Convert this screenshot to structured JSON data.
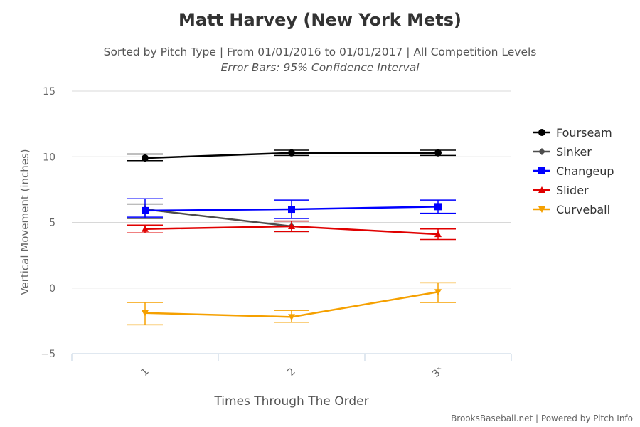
{
  "chart_data": {
    "type": "line",
    "title": "Matt Harvey (New York Mets)",
    "subtitle": "Sorted by Pitch Type | From 01/01/2016 to 01/01/2017 | All Competition Levels",
    "subtitle2": "Error Bars: 95% Confidence Interval",
    "xlabel": "Times Through The Order",
    "ylabel": "Vertical Movement (inches)",
    "categories": [
      "1",
      "2",
      "3ˣ"
    ],
    "ylim": [
      -5,
      15
    ],
    "yticks": [
      "15",
      "10",
      "5",
      "0",
      "−5"
    ],
    "ytick_values": [
      15,
      10,
      5,
      0,
      -5
    ],
    "grid": true,
    "legend_position": "right",
    "series": [
      {
        "name": "Fourseam",
        "color": "#000000",
        "marker": "circle",
        "values": [
          9.9,
          10.3,
          10.3
        ],
        "err_low": [
          9.7,
          10.1,
          10.1
        ],
        "err_high": [
          10.2,
          10.5,
          10.5
        ]
      },
      {
        "name": "Sinker",
        "color": "#4d4d4d",
        "marker": "diamond",
        "values": [
          6.0,
          4.7,
          null
        ],
        "err_low": [
          5.3,
          4.3,
          null
        ],
        "err_high": [
          6.4,
          5.1,
          null
        ]
      },
      {
        "name": "Changeup",
        "color": "#0000ff",
        "marker": "square",
        "values": [
          5.9,
          6.0,
          6.2
        ],
        "err_low": [
          5.4,
          5.3,
          5.7
        ],
        "err_high": [
          6.8,
          6.7,
          6.7
        ]
      },
      {
        "name": "Slider",
        "color": "#e00000",
        "marker": "triangle",
        "values": [
          4.5,
          4.7,
          4.1
        ],
        "err_low": [
          4.2,
          4.3,
          3.7
        ],
        "err_high": [
          4.8,
          5.1,
          4.5
        ]
      },
      {
        "name": "Curveball",
        "color": "#f5a000",
        "marker": "triangle-down",
        "values": [
          -1.9,
          -2.2,
          -0.3
        ],
        "err_low": [
          -2.8,
          -2.6,
          -1.1
        ],
        "err_high": [
          -1.1,
          -1.7,
          0.4
        ]
      }
    ],
    "credit": "BrooksBaseball.net | Powered by Pitch Info"
  }
}
